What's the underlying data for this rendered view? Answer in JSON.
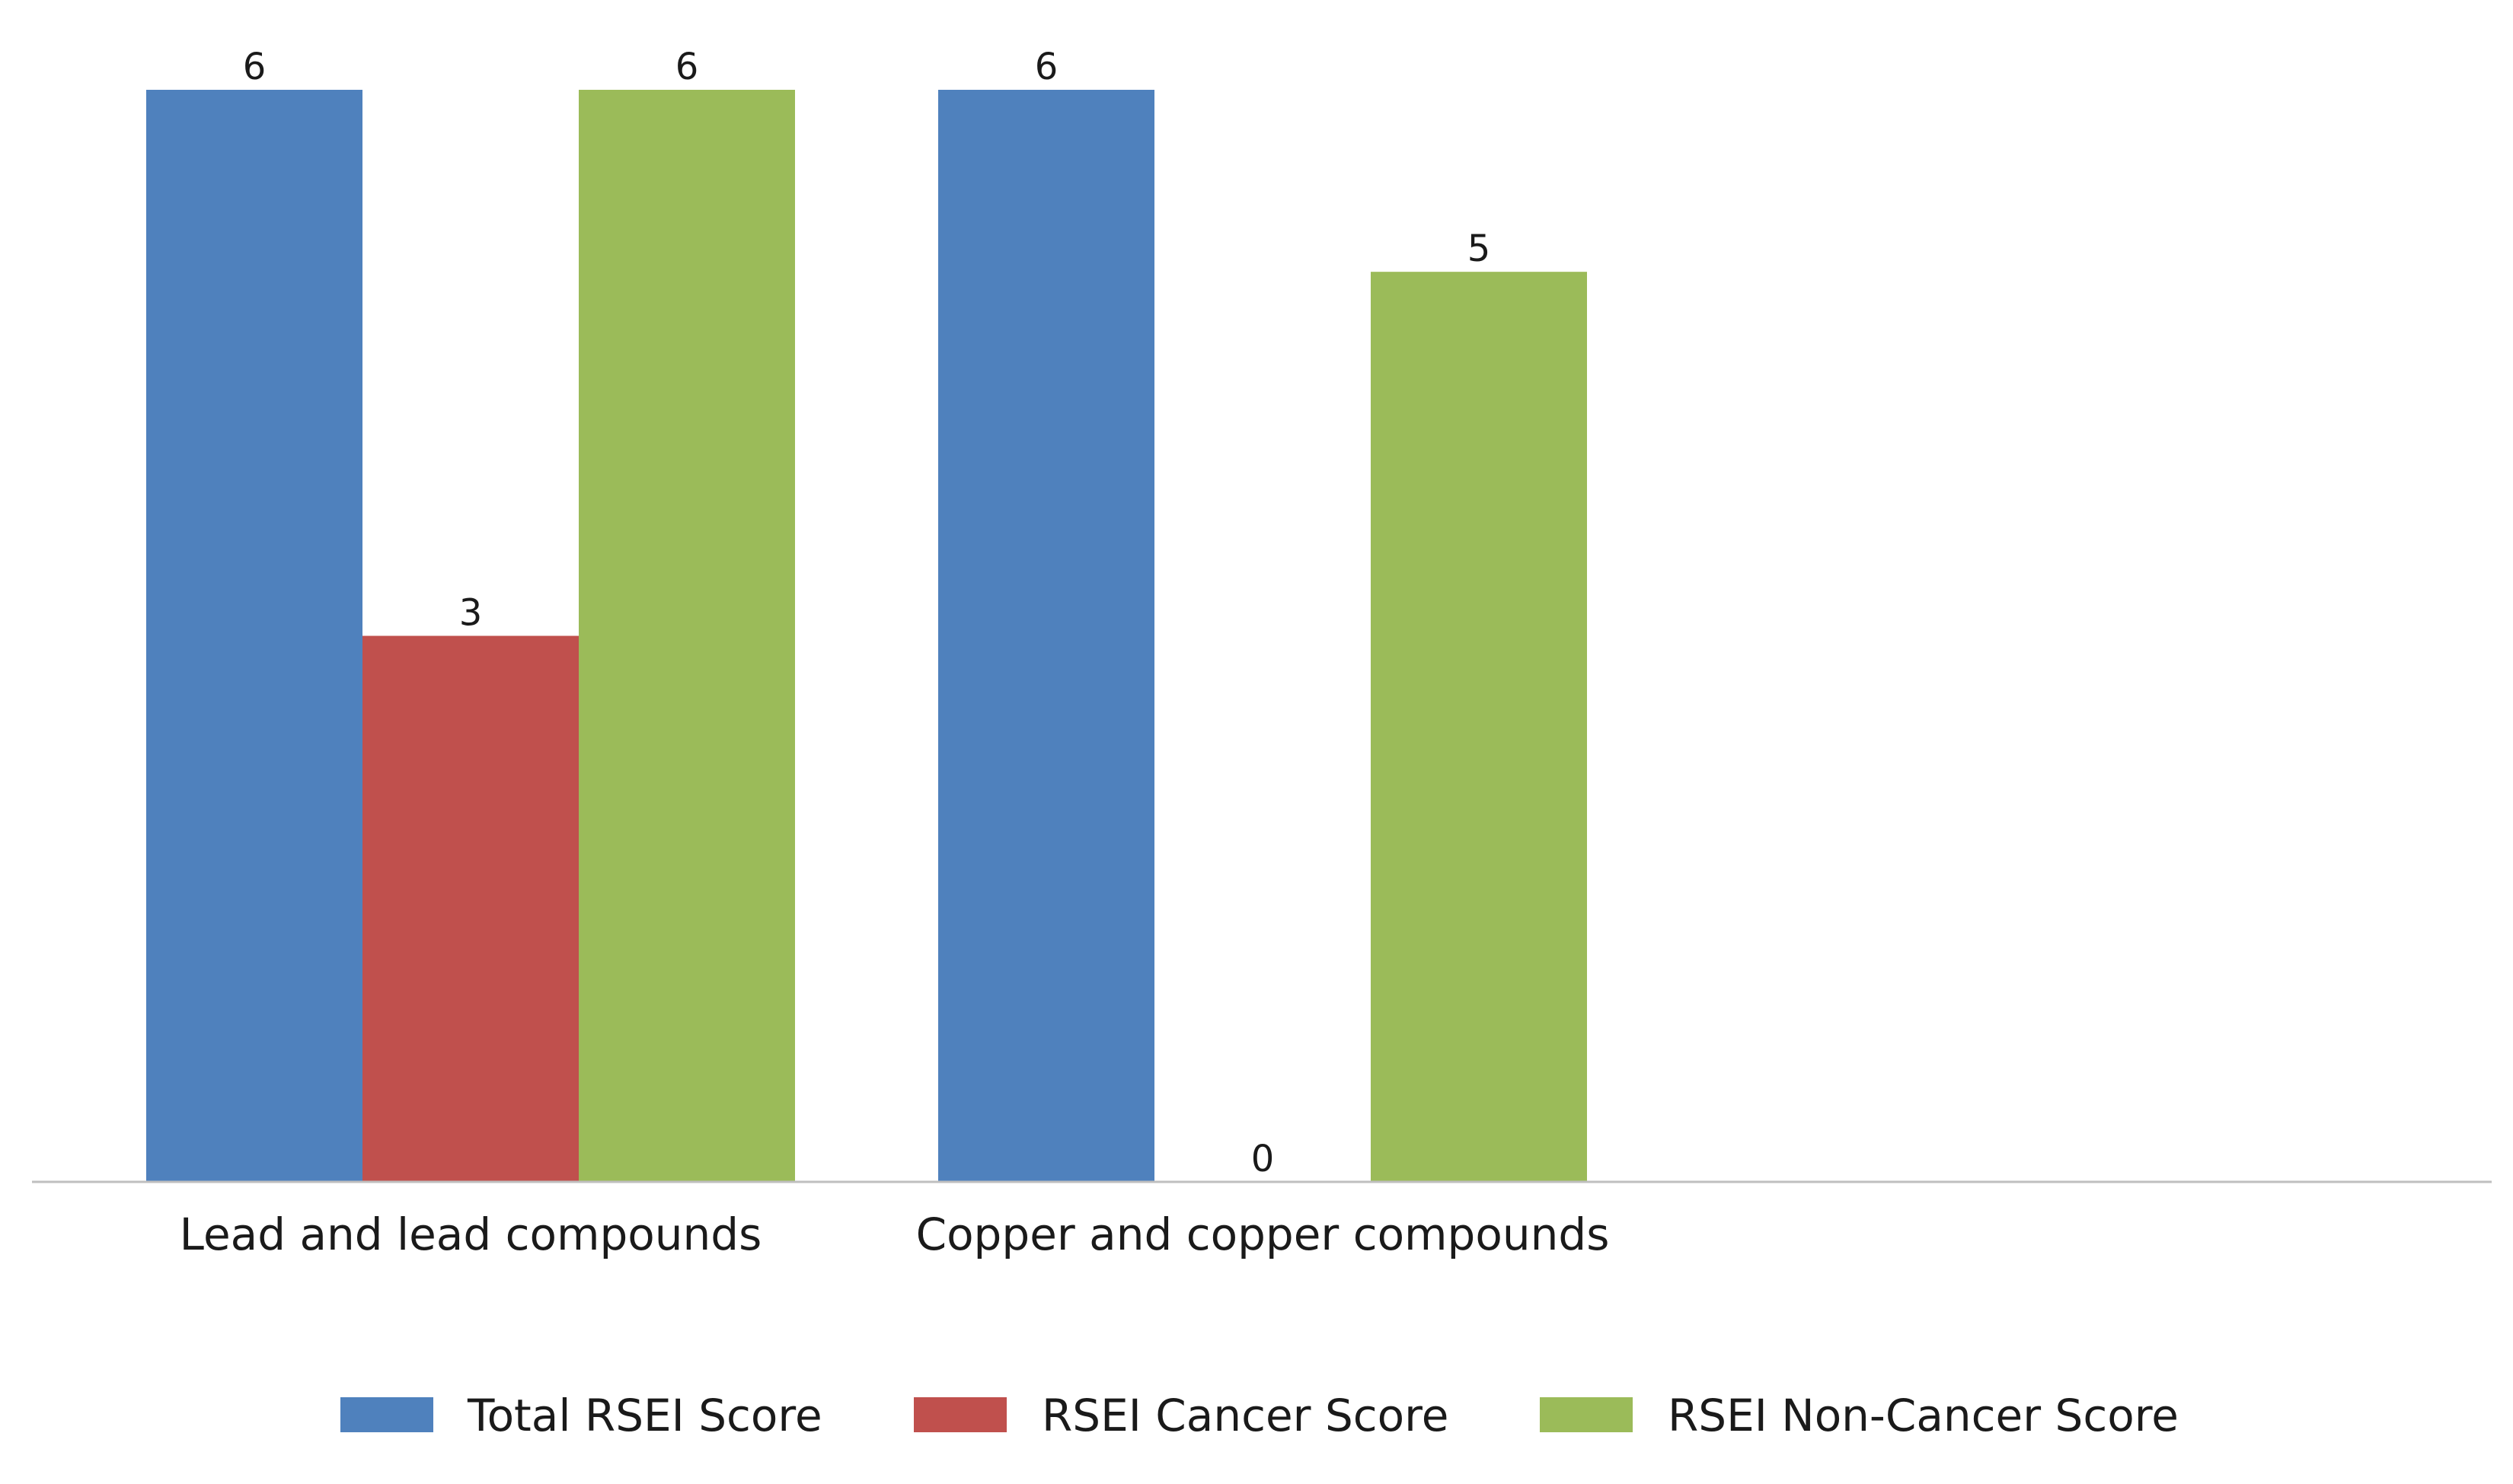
{
  "chart_data": {
    "type": "bar",
    "categories": [
      "Lead and lead compounds",
      "Copper and copper compounds"
    ],
    "series": [
      {
        "name": "Total RSEI Score",
        "values": [
          6,
          6
        ],
        "color": "#4f81bd"
      },
      {
        "name": "RSEI Cancer Score",
        "values": [
          3,
          0
        ],
        "color": "#c0504d"
      },
      {
        "name": "RSEI Non-Cancer Score",
        "values": [
          6,
          5
        ],
        "color": "#9bbb59"
      }
    ],
    "ylim": [
      0,
      6
    ],
    "grid": false,
    "legend_position": "bottom",
    "axis_color": "#bfbfbf"
  }
}
